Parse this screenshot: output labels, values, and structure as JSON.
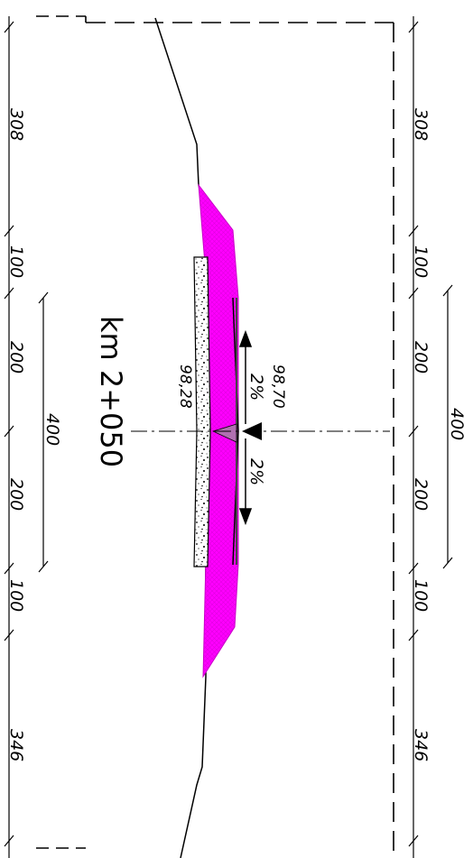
{
  "section": {
    "station_label": "km 2+050",
    "elevation_left": "98,28",
    "elevation_right": "98,70",
    "slope_upper": "2%",
    "slope_lower": "2%"
  },
  "dimensions_left": {
    "top": "308",
    "seg1": "100",
    "seg2": "200",
    "seg3": "200",
    "seg4": "100",
    "bottom": "346",
    "span": "400"
  },
  "dimensions_right": {
    "top": "308",
    "seg1": "100",
    "seg2": "200",
    "seg3": "200",
    "seg4": "100",
    "bottom": "346",
    "span": "400"
  },
  "colors": {
    "embankment": "#ff00ff",
    "line": "#000000",
    "gravel_fill": "#ffffff"
  }
}
